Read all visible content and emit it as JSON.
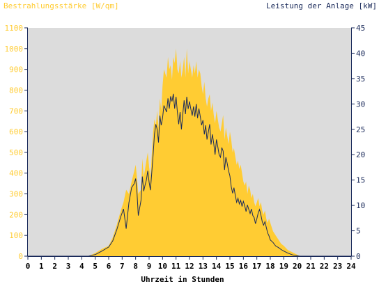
{
  "chart_data": {
    "type": "area",
    "left_axis_title": "Bestrahlungsstärke [W/qm]",
    "right_axis_title": "Leistung der Anlage [kW]",
    "xlabel": "Uhrzeit in Stunden",
    "xlim": [
      0,
      24
    ],
    "left_ylim": [
      0,
      1100
    ],
    "right_ylim": [
      0,
      45
    ],
    "x_ticks": [
      "0",
      "1",
      "2",
      "3",
      "4",
      "5",
      "6",
      "7",
      "8",
      "9",
      "10",
      "11",
      "12",
      "13",
      "14",
      "15",
      "16",
      "17",
      "18",
      "19",
      "20",
      "21",
      "22",
      "23",
      "24"
    ],
    "left_ticks": [
      "0",
      "100",
      "200",
      "300",
      "400",
      "500",
      "600",
      "700",
      "800",
      "900",
      "1000",
      "1100"
    ],
    "right_ticks": [
      "0",
      "5",
      "10",
      "15",
      "20",
      "25",
      "30",
      "35",
      "40",
      "45"
    ],
    "grid": false,
    "colors": {
      "plot_bg": "#dcdcdc",
      "irradiance": "#ffcc33",
      "power": "#1a2a5a",
      "axis": "#1a2a5a"
    },
    "series": [
      {
        "name": "Bestrahlungsstärke [W/qm]",
        "axis": "left",
        "x": [
          0,
          4.5,
          5.0,
          5.5,
          6.0,
          6.3,
          6.6,
          6.9,
          7.1,
          7.3,
          7.5,
          7.7,
          7.9,
          8.0,
          8.1,
          8.2,
          8.4,
          8.5,
          8.6,
          8.7,
          8.8,
          8.9,
          9.0,
          9.1,
          9.3,
          9.4,
          9.5,
          9.6,
          9.7,
          9.8,
          9.9,
          10.0,
          10.1,
          10.3,
          10.4,
          10.5,
          10.6,
          10.7,
          10.8,
          10.9,
          11.0,
          11.1,
          11.2,
          11.3,
          11.4,
          11.5,
          11.6,
          11.7,
          11.8,
          11.9,
          12.0,
          12.1,
          12.2,
          12.3,
          12.4,
          12.5,
          12.6,
          12.7,
          12.8,
          12.9,
          13.0,
          13.1,
          13.2,
          13.3,
          13.4,
          13.5,
          13.6,
          13.7,
          13.8,
          13.9,
          14.0,
          14.1,
          14.2,
          14.3,
          14.4,
          14.5,
          14.6,
          14.7,
          14.8,
          14.9,
          15.0,
          15.1,
          15.2,
          15.3,
          15.4,
          15.5,
          15.6,
          15.7,
          15.8,
          15.9,
          16.0,
          16.1,
          16.2,
          16.3,
          16.4,
          16.5,
          16.6,
          16.7,
          16.8,
          16.9,
          17.0,
          17.1,
          17.2,
          17.3,
          17.4,
          17.5,
          17.6,
          17.7,
          17.8,
          17.9,
          18.0,
          18.2,
          18.4,
          18.6,
          18.8,
          19.0,
          19.3,
          19.6,
          19.9,
          20.2,
          20.4,
          24
        ],
        "y": [
          0,
          0,
          15,
          35,
          50,
          90,
          150,
          220,
          260,
          320,
          300,
          360,
          410,
          440,
          380,
          300,
          320,
          470,
          380,
          420,
          460,
          500,
          430,
          380,
          600,
          660,
          630,
          700,
          620,
          760,
          700,
          820,
          900,
          860,
          960,
          900,
          920,
          850,
          960,
          930,
          1000,
          900,
          880,
          940,
          860,
          900,
          960,
          860,
          1000,
          880,
          940,
          900,
          860,
          920,
          880,
          940,
          860,
          900,
          880,
          820,
          780,
          840,
          760,
          720,
          760,
          780,
          700,
          740,
          680,
          640,
          700,
          660,
          620,
          600,
          640,
          680,
          560,
          620,
          580,
          540,
          600,
          560,
          500,
          520,
          480,
          440,
          460,
          420,
          440,
          400,
          360,
          340,
          360,
          300,
          340,
          320,
          280,
          300,
          260,
          240,
          260,
          280,
          240,
          260,
          220,
          200,
          220,
          180,
          160,
          180,
          160,
          120,
          100,
          80,
          60,
          50,
          30,
          20,
          10,
          0,
          0,
          0
        ]
      },
      {
        "name": "Leistung der Anlage [kW]",
        "axis": "right",
        "x": [
          0,
          4.5,
          5.0,
          5.5,
          6.0,
          6.3,
          6.6,
          6.9,
          7.1,
          7.3,
          7.5,
          7.7,
          7.9,
          8.0,
          8.1,
          8.2,
          8.4,
          8.5,
          8.6,
          8.7,
          8.8,
          8.9,
          9.0,
          9.1,
          9.3,
          9.4,
          9.5,
          9.6,
          9.7,
          9.8,
          9.9,
          10.0,
          10.1,
          10.3,
          10.4,
          10.5,
          10.6,
          10.7,
          10.8,
          10.9,
          11.0,
          11.1,
          11.2,
          11.3,
          11.4,
          11.5,
          11.6,
          11.7,
          11.8,
          11.9,
          12.0,
          12.1,
          12.2,
          12.3,
          12.4,
          12.5,
          12.6,
          12.7,
          12.8,
          12.9,
          13.0,
          13.1,
          13.2,
          13.3,
          13.4,
          13.5,
          13.6,
          13.7,
          13.8,
          13.9,
          14.0,
          14.1,
          14.2,
          14.3,
          14.4,
          14.5,
          14.6,
          14.7,
          14.8,
          14.9,
          15.0,
          15.1,
          15.2,
          15.3,
          15.4,
          15.5,
          15.6,
          15.7,
          15.8,
          15.9,
          16.0,
          16.1,
          16.2,
          16.3,
          16.4,
          16.5,
          16.6,
          16.7,
          16.8,
          16.9,
          17.0,
          17.1,
          17.2,
          17.3,
          17.4,
          17.5,
          17.6,
          17.7,
          17.8,
          17.9,
          18.0,
          18.2,
          18.4,
          18.6,
          18.8,
          19.0,
          19.3,
          19.6,
          19.9,
          20.2,
          20.4,
          24
        ],
        "y": [
          0,
          0,
          0.3,
          1.0,
          1.8,
          3.0,
          5.2,
          7.8,
          9.3,
          5.4,
          10.5,
          13.5,
          14.3,
          15.3,
          12.6,
          8.0,
          11.0,
          15.7,
          12.8,
          14.0,
          15.0,
          16.8,
          14.6,
          13.0,
          20.0,
          24.0,
          26.0,
          25.0,
          22.4,
          27.7,
          25.8,
          27.2,
          29.7,
          28.4,
          31.1,
          29.1,
          31.5,
          30.5,
          32.0,
          29.1,
          31.4,
          28.4,
          26.0,
          28.4,
          25.0,
          27.9,
          30.7,
          28.0,
          31.4,
          29.0,
          30.5,
          29.0,
          27.7,
          29.5,
          27.5,
          30.0,
          27.2,
          29.1,
          27.5,
          25.8,
          26.8,
          24.0,
          25.8,
          23.0,
          24.5,
          26.0,
          22.0,
          24.0,
          22.2,
          20.0,
          23.0,
          21.6,
          20.0,
          19.5,
          21.4,
          20.7,
          17.0,
          19.5,
          18.3,
          16.8,
          15.8,
          13.7,
          12.4,
          13.5,
          12.0,
          10.6,
          11.4,
          10.3,
          11.0,
          9.8,
          10.8,
          9.9,
          8.8,
          10.1,
          9.2,
          8.4,
          9.3,
          8.0,
          7.6,
          6.4,
          7.4,
          8.5,
          9.2,
          8.1,
          6.8,
          6.1,
          6.8,
          5.7,
          4.6,
          4.0,
          3.2,
          2.7,
          2.0,
          1.7,
          1.3,
          1.0,
          0.6,
          0.3,
          0.1,
          0,
          0,
          0
        ]
      }
    ]
  }
}
